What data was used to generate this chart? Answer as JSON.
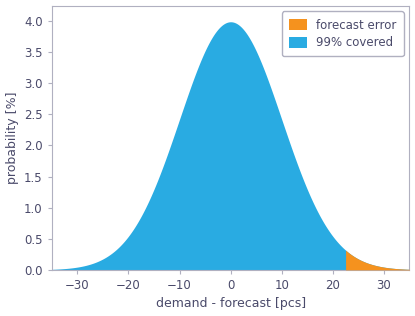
{
  "title": "",
  "xlabel": "demand - forecast [pcs]",
  "ylabel": "probability [%]",
  "xlim": [
    -35,
    35
  ],
  "ylim": [
    0,
    4.25
  ],
  "mean": 0,
  "std": 10.0,
  "cutoff": 22.5,
  "x_min": -37,
  "x_max": 37,
  "color_blue": "#29ABE2",
  "color_orange": "#F5921E",
  "legend_labels": [
    "forecast error",
    "99% covered"
  ],
  "xticks": [
    -30,
    -20,
    -10,
    0,
    10,
    20,
    30
  ],
  "yticks": [
    0.0,
    0.5,
    1.0,
    1.5,
    2.0,
    2.5,
    3.0,
    3.5,
    4.0
  ],
  "scale_factor": 100,
  "tick_label_color": "#4a4a6a",
  "spine_color": "#b0b0c0",
  "legend_edge_color": "#b0b0c0"
}
